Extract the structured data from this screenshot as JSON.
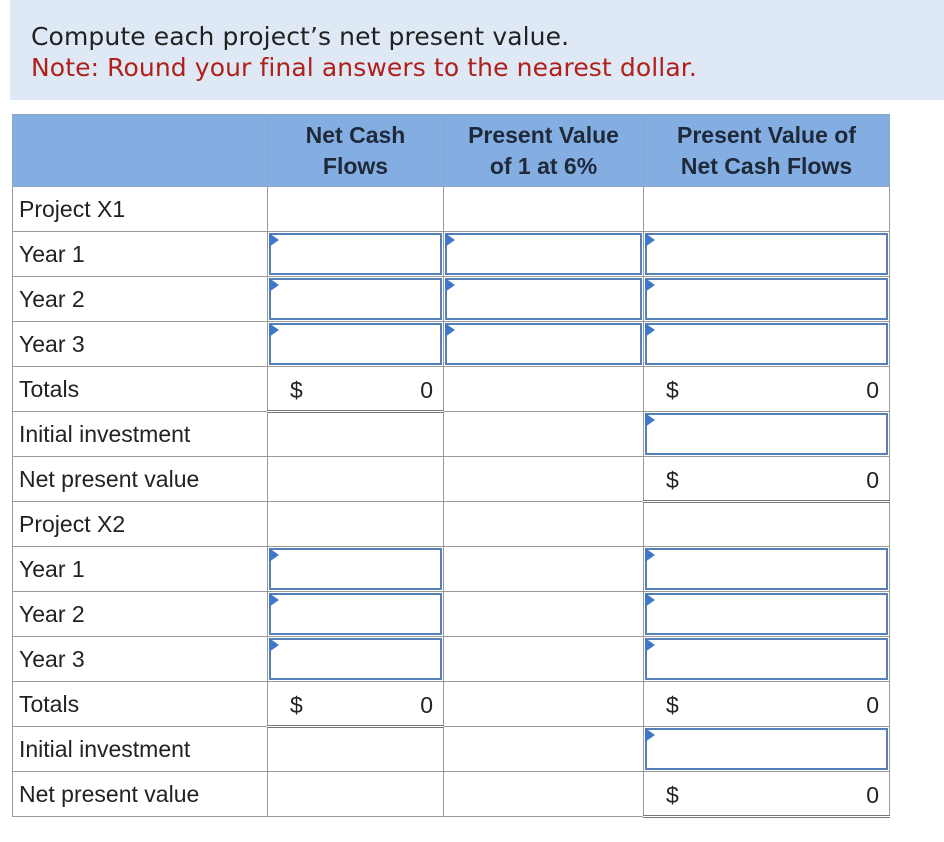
{
  "instructions": {
    "question": "Compute each project’s net present value.",
    "note": "Note: Round your final answers to the nearest dollar."
  },
  "table": {
    "headers": [
      "",
      "Net Cash Flows",
      "Present Value of 1 at 6%",
      "Present Value of Net Cash Flows"
    ],
    "header_lines": {
      "h1": [
        "Net Cash",
        "Flows"
      ],
      "h2": [
        "Present Value",
        "of 1 at 6%"
      ],
      "h3": [
        "Present Value of",
        "Net Cash Flows"
      ]
    },
    "projects": [
      {
        "name": "Project X1",
        "years": [
          "Year 1",
          "Year 2",
          "Year 3"
        ],
        "totals_label": "Totals",
        "totals_currency": "$",
        "totals_net_cash_flows": "0",
        "totals_pv": "0",
        "initial_investment_label": "Initial investment",
        "npv_label": "Net present value",
        "npv_currency": "$",
        "npv_value": "0"
      },
      {
        "name": "Project X2",
        "years": [
          "Year 1",
          "Year 2",
          "Year 3"
        ],
        "totals_label": "Totals",
        "totals_currency": "$",
        "totals_net_cash_flows": "0",
        "totals_pv": "0",
        "initial_investment_label": "Initial investment",
        "npv_label": "Net present value",
        "npv_currency": "$",
        "npv_value": "0"
      }
    ]
  },
  "colors": {
    "header_bg": "#84aee2",
    "instructions_bg": "#dfe9f6",
    "note_text": "#b0201a",
    "input_border": "#5580b8",
    "input_marker": "#3f78c8"
  }
}
